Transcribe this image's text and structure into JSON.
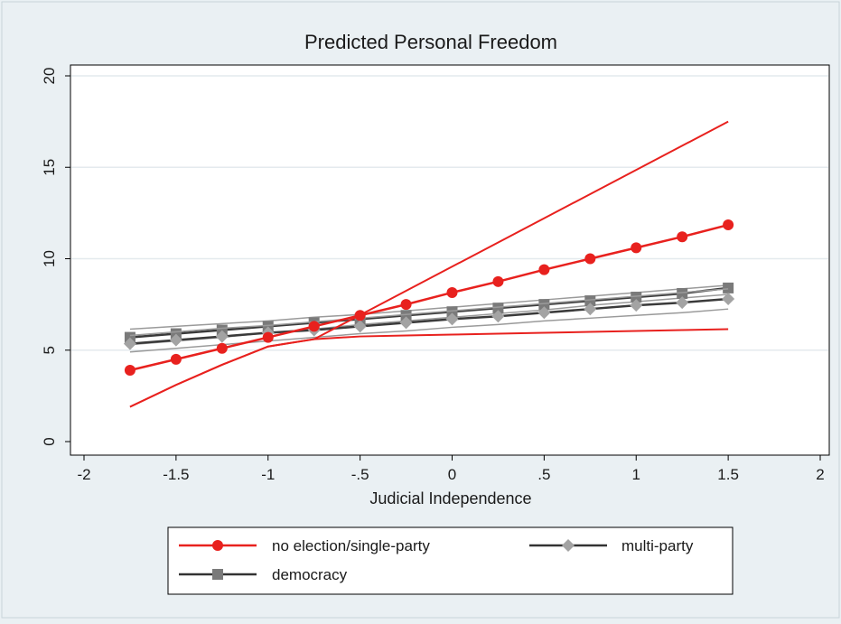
{
  "chart_data": {
    "type": "line",
    "title": "Predicted Personal Freedom",
    "xlabel": "Judicial Independence",
    "ylabel": "",
    "xlim": [
      -2,
      2
    ],
    "ylim": [
      0,
      20
    ],
    "xticks": [
      -2,
      -1.5,
      -1,
      -0.5,
      0,
      0.5,
      1,
      1.5,
      2
    ],
    "xtick_labels": [
      "-2",
      "-1.5",
      "-1",
      "-.5",
      "0",
      ".5",
      "1",
      "1.5",
      "2"
    ],
    "yticks": [
      0,
      5,
      10,
      15,
      20
    ],
    "ytick_labels": [
      "0",
      "5",
      "10",
      "15",
      "20"
    ],
    "grid": "horizontal",
    "legend_position": "bottom",
    "x": [
      -1.75,
      -1.5,
      -1.25,
      -1,
      -0.75,
      -0.5,
      -0.25,
      0,
      0.25,
      0.5,
      0.75,
      1,
      1.25,
      1.5
    ],
    "series": [
      {
        "name": "no election/single-party",
        "color": "#e8211e",
        "marker": "circle",
        "values": [
          3.9,
          4.5,
          5.1,
          5.7,
          6.3,
          6.9,
          7.5,
          8.15,
          8.75,
          9.4,
          10.0,
          10.6,
          11.2,
          11.85
        ],
        "ci_upper": [
          1.9,
          3.1,
          4.2,
          5.2,
          5.6,
          5.75,
          5.8,
          5.85,
          5.9,
          5.95,
          6.0,
          6.05,
          6.1,
          6.15
        ],
        "ci_lower_x": [
          -1.75,
          -1.5,
          -1.25,
          -1,
          -0.75,
          1.5
        ],
        "ci_lower": [
          1.9,
          3.1,
          4.2,
          5.2,
          5.6,
          17.5
        ]
      },
      {
        "name": "multi-party",
        "color": "#a3a3a3",
        "marker": "diamond",
        "values": [
          5.35,
          5.55,
          5.75,
          5.95,
          6.1,
          6.3,
          6.5,
          6.7,
          6.85,
          7.05,
          7.25,
          7.45,
          7.6,
          7.8
        ],
        "ci_upper": [
          5.8,
          6.0,
          6.2,
          6.35,
          6.55,
          6.75,
          6.95,
          7.15,
          7.35,
          7.55,
          7.75,
          7.95,
          8.15,
          8.35
        ],
        "ci_lower": [
          4.9,
          5.1,
          5.3,
          5.5,
          5.7,
          5.9,
          6.05,
          6.25,
          6.4,
          6.6,
          6.75,
          6.9,
          7.05,
          7.25
        ]
      },
      {
        "name": "democracy",
        "color": "#7a7a7a",
        "marker": "square",
        "values": [
          5.7,
          5.9,
          6.1,
          6.3,
          6.5,
          6.7,
          6.9,
          7.1,
          7.3,
          7.5,
          7.7,
          7.9,
          8.1,
          8.4
        ],
        "ci_upper": [
          6.15,
          6.3,
          6.45,
          6.6,
          6.8,
          6.95,
          7.15,
          7.35,
          7.55,
          7.75,
          7.95,
          8.15,
          8.35,
          8.55
        ],
        "ci_lower": [
          5.3,
          5.5,
          5.7,
          5.95,
          6.15,
          6.4,
          6.6,
          6.8,
          7.0,
          7.2,
          7.45,
          7.65,
          7.85,
          8.05
        ]
      }
    ]
  },
  "legend": {
    "items": [
      {
        "label": "no election/single-party",
        "color": "#e8211e",
        "line_color": "#e8211e",
        "marker": "circle"
      },
      {
        "label": "multi-party",
        "color": "#a3a3a3",
        "line_color": "#333333",
        "marker": "diamond"
      },
      {
        "label": "democracy",
        "color": "#7a7a7a",
        "line_color": "#333333",
        "marker": "square"
      }
    ]
  }
}
